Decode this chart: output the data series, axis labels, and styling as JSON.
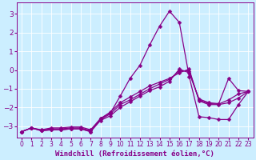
{
  "background_color": "#cceeff",
  "line_color": "#880088",
  "marker": "D",
  "markersize": 2.5,
  "linewidth": 0.9,
  "xlabel": "Windchill (Refroidissement éolien,°C)",
  "xlabel_fontsize": 6.5,
  "xtick_fontsize": 5.5,
  "ytick_fontsize": 6.5,
  "xlim": [
    -0.5,
    23.5
  ],
  "ylim": [
    -3.6,
    3.6
  ],
  "yticks": [
    -3,
    -2,
    -1,
    0,
    1,
    2,
    3
  ],
  "grid_color": "#aadddd",
  "series": {
    "x": [
      0,
      1,
      2,
      3,
      4,
      5,
      6,
      7,
      8,
      9,
      10,
      11,
      12,
      13,
      14,
      15,
      16,
      17,
      18,
      19,
      20,
      21,
      22,
      23
    ],
    "y1": [
      -3.3,
      -3.1,
      -3.25,
      -3.2,
      -3.2,
      -3.15,
      -3.15,
      -3.3,
      -2.7,
      -2.45,
      -2.0,
      -1.7,
      -1.4,
      -1.1,
      -0.9,
      -0.6,
      0.05,
      -0.15,
      -1.55,
      -1.75,
      -1.8,
      -0.45,
      -1.1,
      -1.15
    ],
    "y2": [
      -3.3,
      -3.1,
      -3.25,
      -3.2,
      -3.2,
      -3.15,
      -3.15,
      -3.3,
      -2.6,
      -2.3,
      -1.4,
      -0.45,
      0.25,
      1.35,
      2.35,
      3.15,
      2.55,
      -0.35,
      -2.5,
      -2.55,
      -2.65,
      -2.65,
      -1.85,
      -1.15
    ],
    "y3": [
      -3.3,
      -3.1,
      -3.2,
      -3.1,
      -3.1,
      -3.05,
      -3.05,
      -3.2,
      -2.6,
      -2.25,
      -1.75,
      -1.45,
      -1.15,
      -0.85,
      -0.65,
      -0.45,
      -0.15,
      0.05,
      -1.65,
      -1.85,
      -1.85,
      -1.75,
      -1.5,
      -1.15
    ],
    "y4": [
      -3.3,
      -3.1,
      -3.22,
      -3.15,
      -3.15,
      -3.1,
      -3.1,
      -3.25,
      -2.65,
      -2.35,
      -1.85,
      -1.6,
      -1.3,
      -1.0,
      -0.75,
      -0.5,
      -0.05,
      -0.05,
      -1.6,
      -1.8,
      -1.82,
      -1.6,
      -1.28,
      -1.15
    ]
  }
}
